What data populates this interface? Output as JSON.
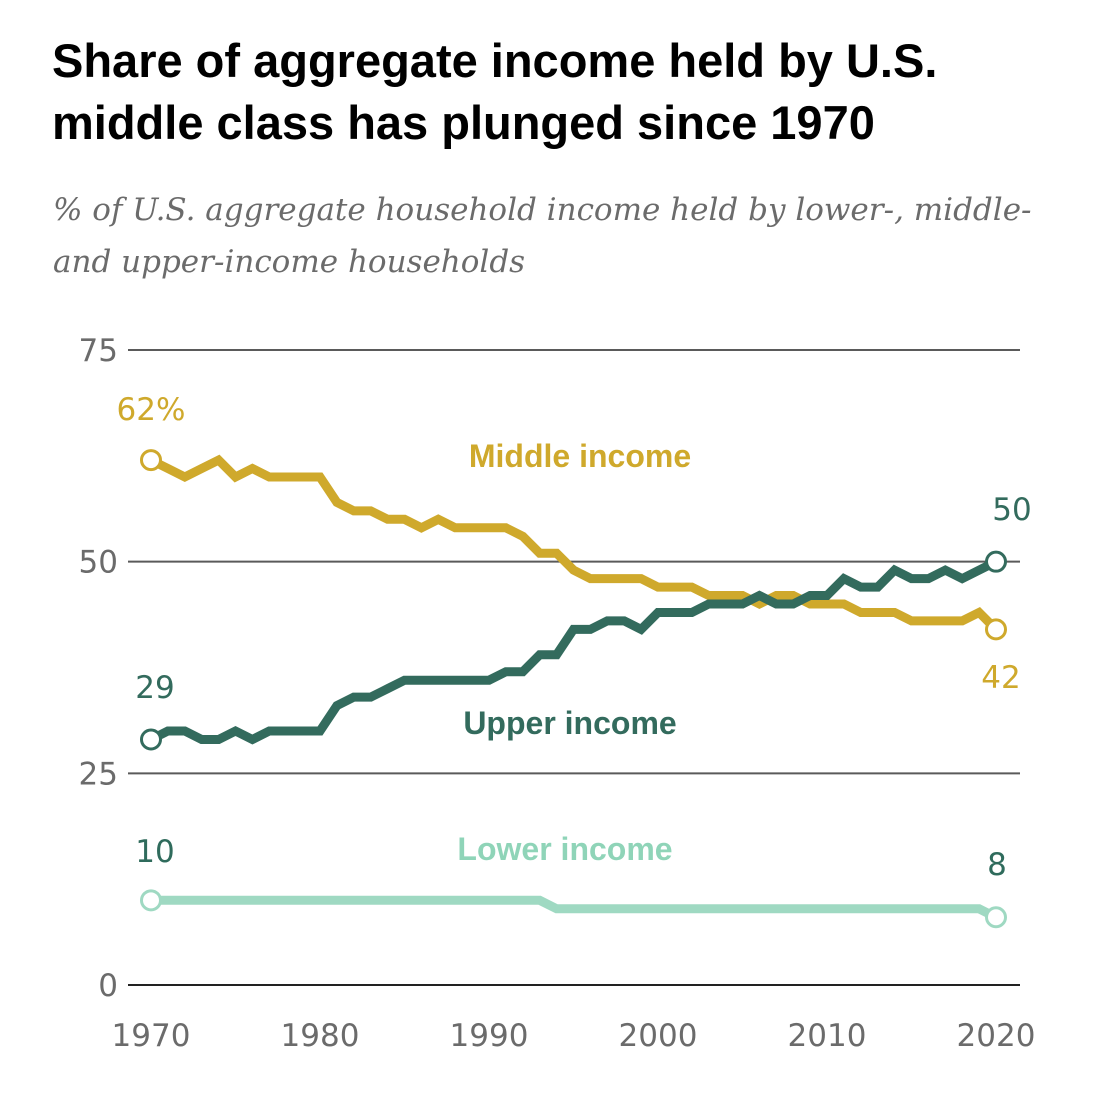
{
  "chart_data": {
    "type": "line",
    "title": "Share of aggregate income held by U.S. middle class has plunged since 1970",
    "subtitle": "% of U.S. aggregate household income held by lower-, middle- and upper-income households",
    "ylim": [
      0,
      75
    ],
    "yticks": [
      0,
      25,
      50,
      75
    ],
    "xlim": [
      1970,
      2020
    ],
    "xticks": [
      1970,
      1980,
      1990,
      2000,
      2010,
      2020
    ],
    "grid": true,
    "x": [
      1970,
      1971,
      1972,
      1973,
      1974,
      1975,
      1976,
      1977,
      1978,
      1979,
      1980,
      1981,
      1982,
      1983,
      1984,
      1985,
      1986,
      1987,
      1988,
      1989,
      1990,
      1991,
      1992,
      1993,
      1994,
      1995,
      1996,
      1997,
      1998,
      1999,
      2000,
      2001,
      2002,
      2003,
      2004,
      2005,
      2006,
      2007,
      2008,
      2009,
      2010,
      2011,
      2012,
      2013,
      2014,
      2015,
      2016,
      2017,
      2018,
      2019,
      2020
    ],
    "series": [
      {
        "name": "Middle income",
        "color": "#cfa92c",
        "values": [
          62,
          61,
          60,
          61,
          62,
          60,
          61,
          60,
          60,
          60,
          60,
          57,
          56,
          56,
          55,
          55,
          54,
          55,
          54,
          54,
          54,
          54,
          53,
          51,
          51,
          49,
          48,
          48,
          48,
          48,
          47,
          47,
          47,
          46,
          46,
          46,
          45,
          46,
          46,
          45,
          45,
          45,
          44,
          44,
          44,
          43,
          43,
          43,
          43,
          44,
          42
        ],
        "start_label": "62%",
        "end_label": "42"
      },
      {
        "name": "Upper income",
        "color": "#336b5d",
        "values": [
          29,
          30,
          30,
          29,
          29,
          30,
          29,
          30,
          30,
          30,
          30,
          33,
          34,
          34,
          35,
          36,
          36,
          36,
          36,
          36,
          36,
          37,
          37,
          39,
          39,
          42,
          42,
          43,
          43,
          42,
          44,
          44,
          44,
          45,
          45,
          45,
          46,
          45,
          45,
          46,
          46,
          48,
          47,
          47,
          49,
          48,
          48,
          49,
          48,
          49,
          50
        ],
        "start_label": "29",
        "end_label": "50"
      },
      {
        "name": "Lower income",
        "color": "#9fd9c2",
        "values": [
          10,
          10,
          10,
          10,
          10,
          10,
          10,
          10,
          10,
          10,
          10,
          10,
          10,
          10,
          10,
          10,
          10,
          10,
          10,
          10,
          10,
          10,
          10,
          10,
          9,
          9,
          9,
          9,
          9,
          9,
          9,
          9,
          9,
          9,
          9,
          9,
          9,
          9,
          9,
          9,
          9,
          9,
          9,
          9,
          9,
          9,
          9,
          9,
          9,
          9,
          8
        ],
        "start_label": "10",
        "end_label": "8"
      }
    ]
  }
}
